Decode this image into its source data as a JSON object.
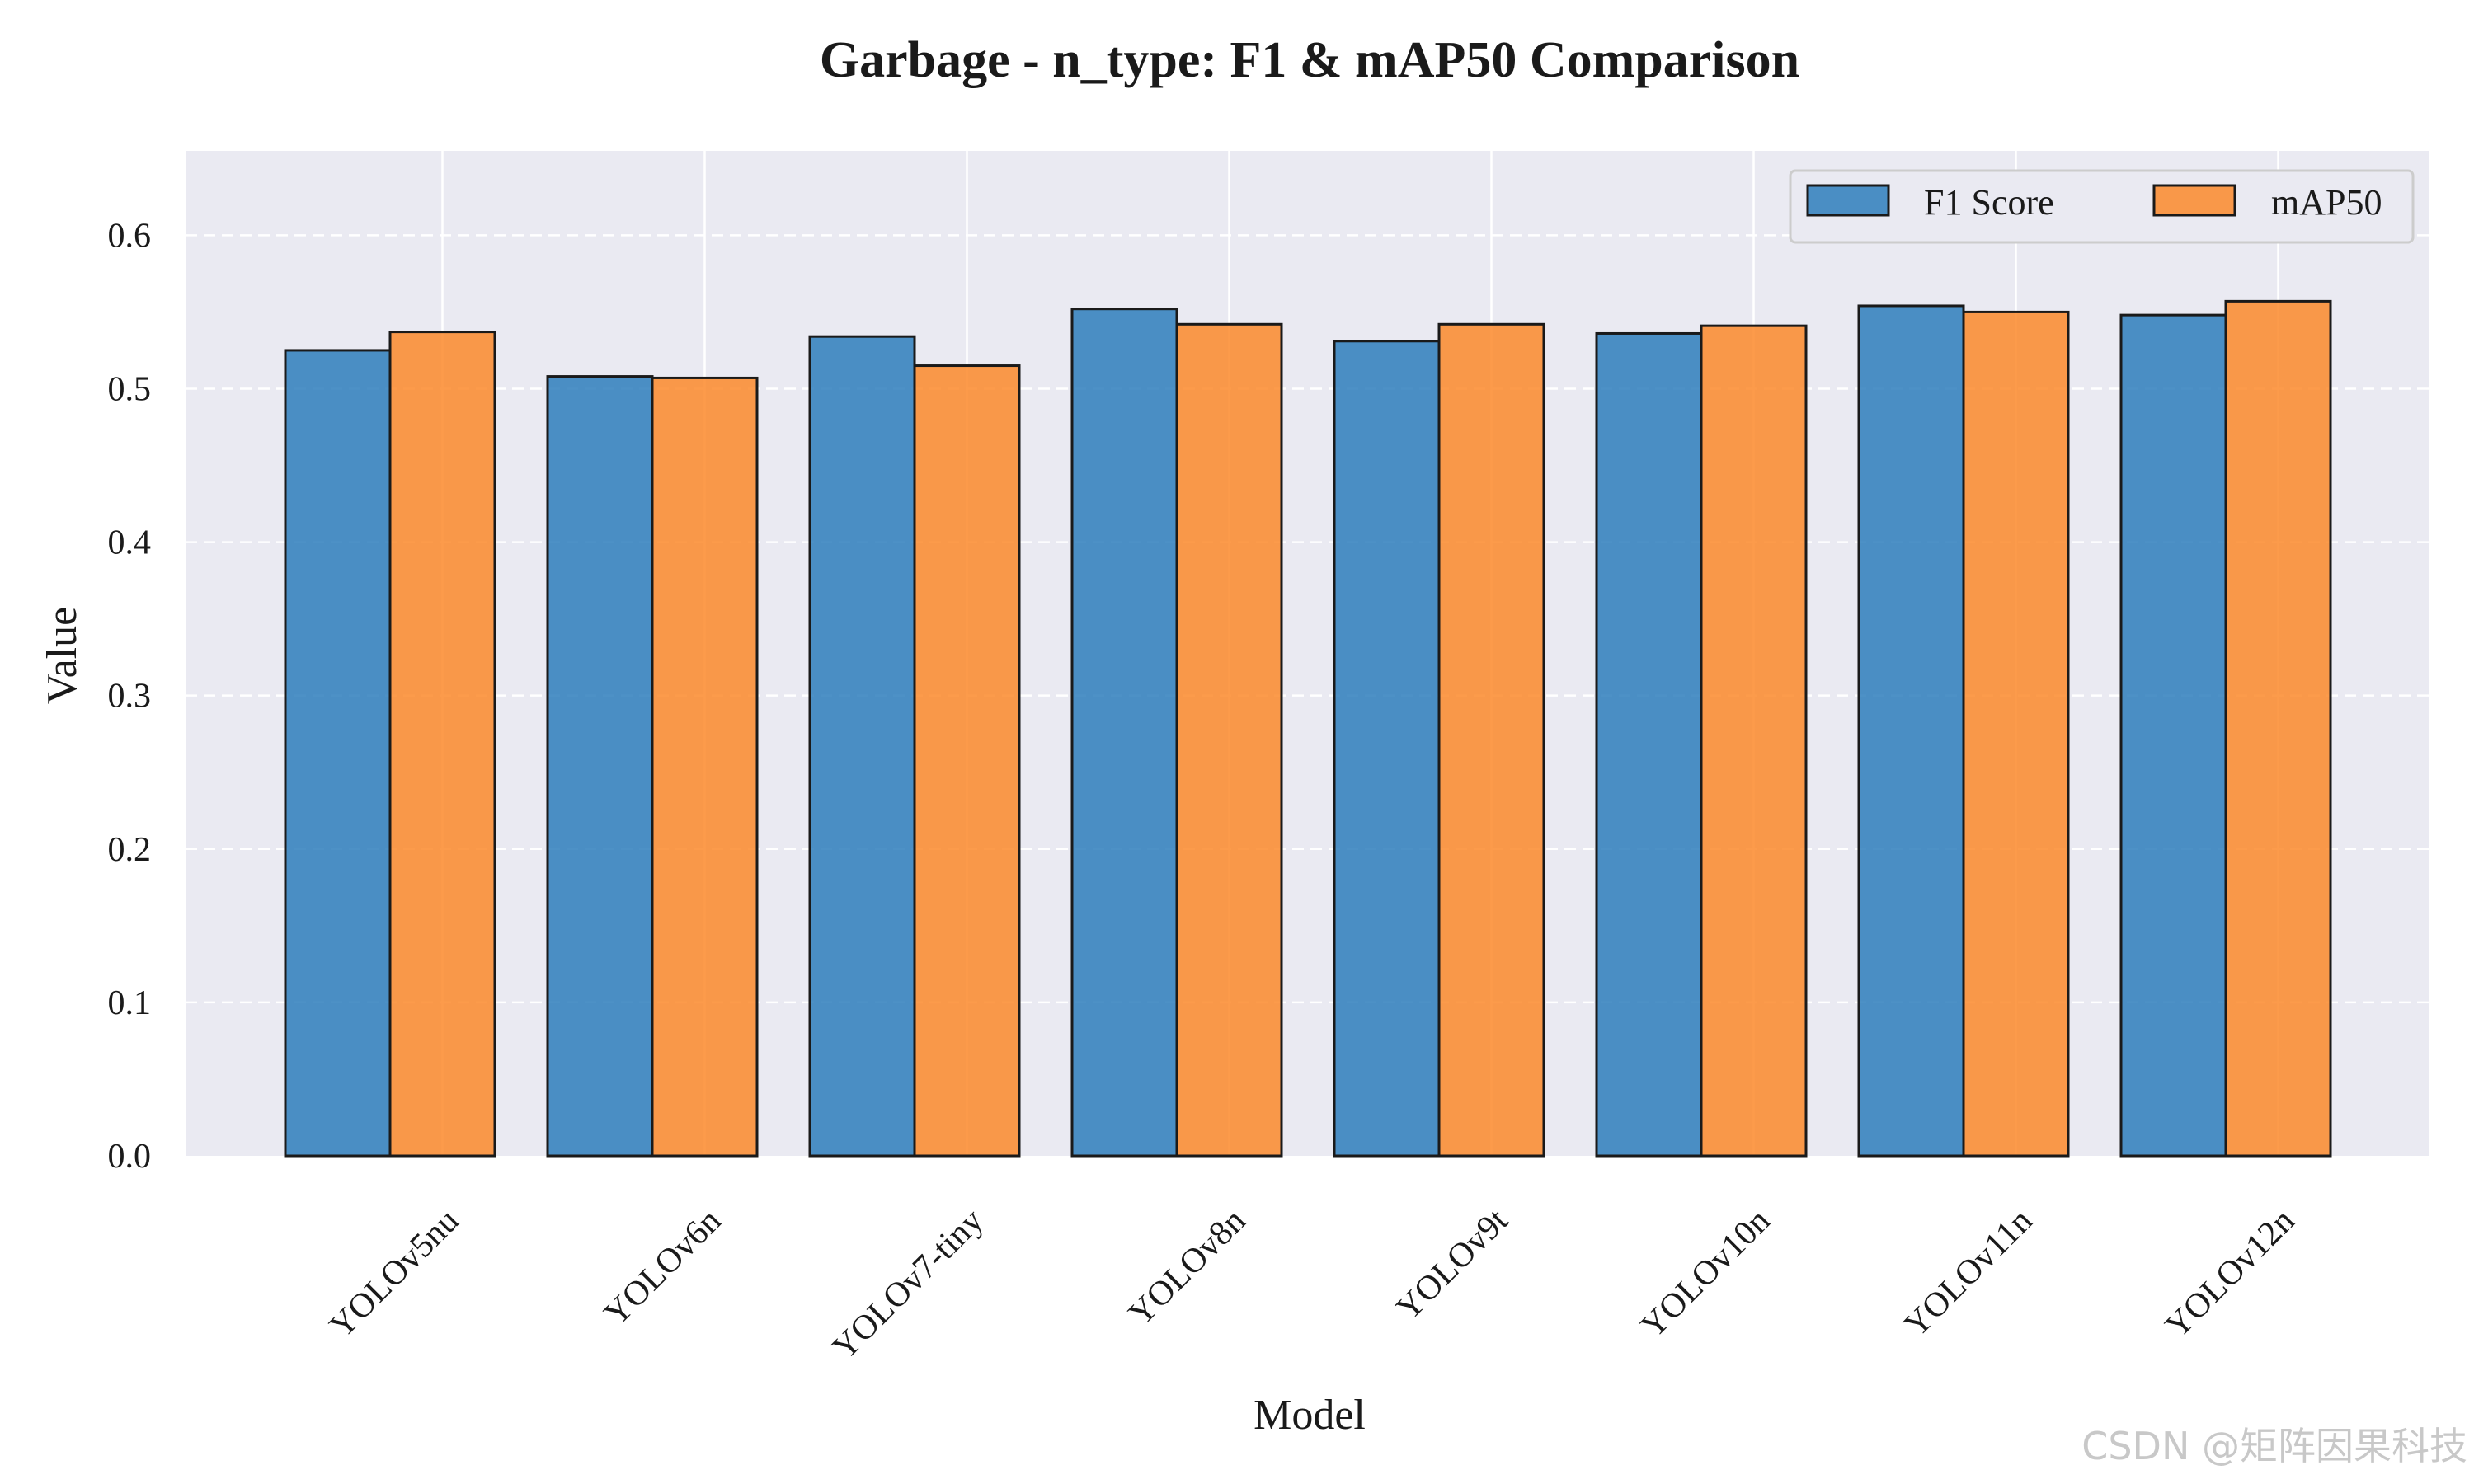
{
  "chart_data": {
    "type": "bar",
    "title": "Garbage - n_type: F1 & mAP50 Comparison",
    "xlabel": "Model",
    "ylabel": "Value",
    "categories": [
      "YOLOv5nu",
      "YOLOv6n",
      "YOLOv7-tiny",
      "YOLOv8n",
      "YOLOv9t",
      "YOLOv10n",
      "YOLOv11n",
      "YOLOv12n"
    ],
    "series": [
      {
        "name": "F1 Score",
        "color": "#2e7ebc",
        "values": [
          0.525,
          0.508,
          0.534,
          0.552,
          0.531,
          0.536,
          0.554,
          0.548
        ]
      },
      {
        "name": "mAP50",
        "color": "#fb8a2b",
        "values": [
          0.537,
          0.507,
          0.515,
          0.542,
          0.542,
          0.541,
          0.55,
          0.557
        ]
      }
    ],
    "ylim": [
      0,
      0.655
    ],
    "yticks": [
      "0.0",
      "0.1",
      "0.2",
      "0.3",
      "0.4",
      "0.5",
      "0.6"
    ],
    "grid": true,
    "legend_position": "top-right",
    "background_color": "#eaeaf2"
  },
  "watermark": "CSDN @矩阵因果科技"
}
